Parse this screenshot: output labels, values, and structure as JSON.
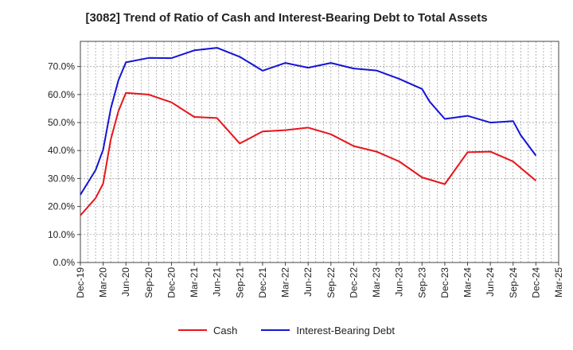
{
  "chart_data": {
    "type": "line",
    "title": "[3082]  Trend of Ratio of Cash and Interest-Bearing Debt to Total Assets",
    "xlabel": "",
    "ylabel": "",
    "x_ticks": [
      "Dec-19",
      "Mar-20",
      "Jun-20",
      "Sep-20",
      "Dec-20",
      "Mar-21",
      "Jun-21",
      "Sep-21",
      "Dec-21",
      "Mar-22",
      "Jun-22",
      "Sep-22",
      "Dec-22",
      "Mar-23",
      "Jun-23",
      "Sep-23",
      "Dec-23",
      "Mar-24",
      "Jun-24",
      "Sep-24",
      "Dec-24",
      "Mar-25"
    ],
    "y_ticks": [
      "0.0%",
      "10.0%",
      "20.0%",
      "30.0%",
      "40.0%",
      "50.0%",
      "60.0%",
      "70.0%"
    ],
    "ylim": [
      0,
      79
    ],
    "grid": true,
    "legend_position": "bottom",
    "series": [
      {
        "name": "Cash",
        "color": "#e8141a",
        "points": [
          [
            0,
            16.8
          ],
          [
            2,
            23
          ],
          [
            3,
            28.2
          ],
          [
            4,
            44
          ],
          [
            5,
            54
          ],
          [
            6,
            60.6
          ],
          [
            9,
            60
          ],
          [
            12,
            57.2
          ],
          [
            15,
            52
          ],
          [
            18,
            51.6
          ],
          [
            21,
            42.5
          ],
          [
            24,
            46.8
          ],
          [
            27,
            47.3
          ],
          [
            30,
            48.2
          ],
          [
            33,
            45.8
          ],
          [
            36,
            41.6
          ],
          [
            39,
            39.6
          ],
          [
            42,
            36.1
          ],
          [
            45,
            30.4
          ],
          [
            48,
            28.0
          ],
          [
            51,
            39.4
          ],
          [
            54,
            39.6
          ],
          [
            57,
            36.1
          ],
          [
            58,
            33.8
          ],
          [
            60,
            29.2
          ]
        ]
      },
      {
        "name": "Interest-Bearing Debt",
        "color": "#1414d6",
        "points": [
          [
            0,
            24.2
          ],
          [
            2,
            33
          ],
          [
            3,
            40.3
          ],
          [
            4,
            55
          ],
          [
            5,
            65
          ],
          [
            6,
            71.5
          ],
          [
            9,
            73.1
          ],
          [
            12,
            73
          ],
          [
            15,
            75.8
          ],
          [
            18,
            76.7
          ],
          [
            21,
            73.5
          ],
          [
            24,
            68.5
          ],
          [
            27,
            71.3
          ],
          [
            30,
            69.6
          ],
          [
            33,
            71.3
          ],
          [
            36,
            69.3
          ],
          [
            39,
            68.6
          ],
          [
            42,
            65.6
          ],
          [
            45,
            62
          ],
          [
            46,
            57.5
          ],
          [
            48,
            51.3
          ],
          [
            51,
            52.4
          ],
          [
            54,
            50
          ],
          [
            57,
            50.5
          ],
          [
            58,
            45.5
          ],
          [
            60,
            38.2
          ]
        ]
      }
    ]
  }
}
